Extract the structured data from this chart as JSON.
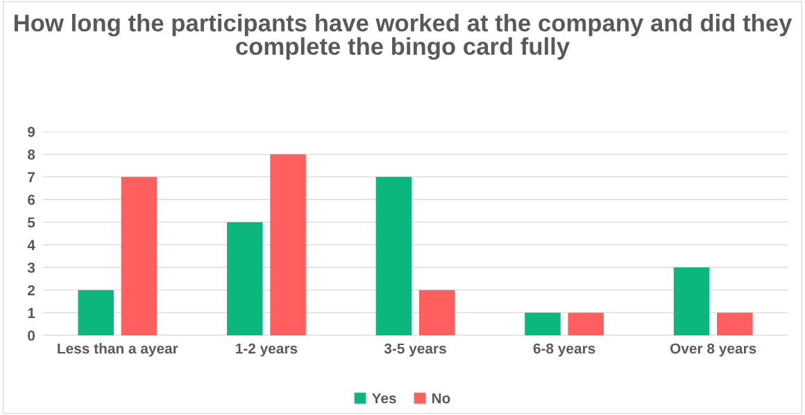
{
  "chart_data": {
    "type": "bar",
    "title": "How long the participants have worked at the company and did they complete the bingo card fully",
    "categories": [
      "Less than a ayear",
      "1-2 years",
      "3-5 years",
      "6-8 years",
      "Over 8 years"
    ],
    "series": [
      {
        "name": "Yes",
        "color": "#0cb77f",
        "values": [
          2,
          5,
          7,
          1,
          3
        ]
      },
      {
        "name": "No",
        "color": "#ff5f5f",
        "values": [
          7,
          8,
          2,
          1,
          1
        ]
      }
    ],
    "ylim": [
      0,
      9
    ],
    "yticks": [
      0,
      1,
      2,
      3,
      4,
      5,
      6,
      7,
      8,
      9
    ],
    "grid": "y",
    "legend": "bottom"
  }
}
